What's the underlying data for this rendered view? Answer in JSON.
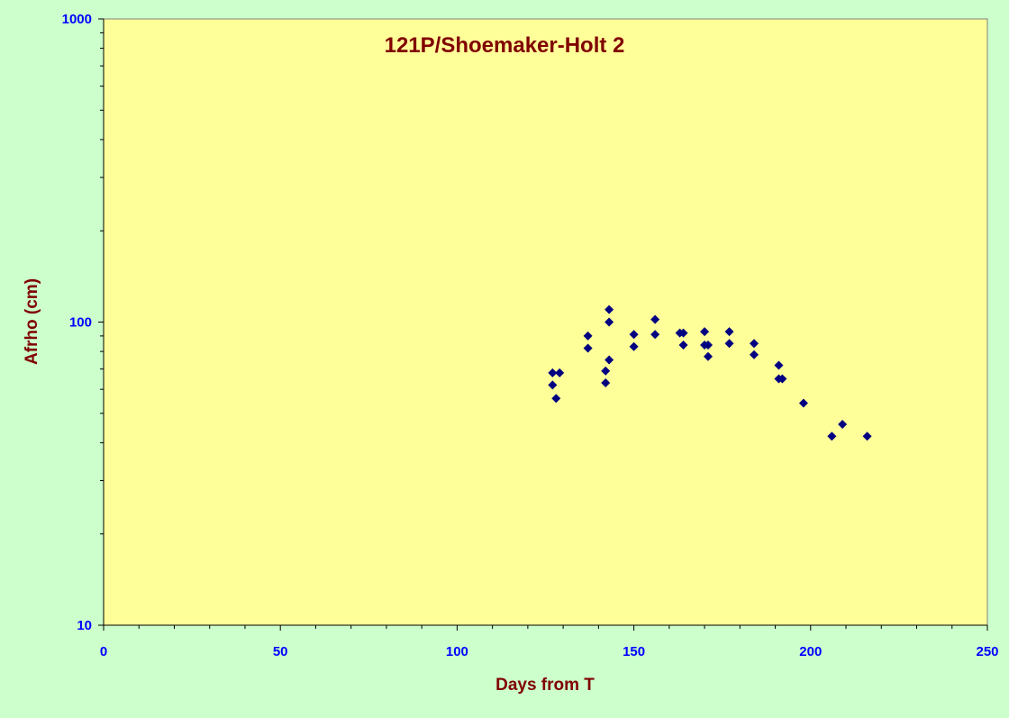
{
  "colors": {
    "background": "#ccffcc",
    "plot_area": "#ffff99",
    "title": "#800000",
    "axis_title": "#800000",
    "tick_labels": "#0000ff",
    "marker": "#000080",
    "axis_line": "#000000"
  },
  "chart_data": {
    "type": "scatter",
    "title": "121P/Shoemaker-Holt 2",
    "xlabel": "Days from T",
    "ylabel": "Afrho (cm)",
    "xlim": [
      0,
      250
    ],
    "ylim": [
      10,
      1000
    ],
    "y_scale": "log",
    "grid": false,
    "legend": "none",
    "marker": "diamond",
    "x_ticks": [
      0,
      50,
      100,
      150,
      200,
      250
    ],
    "x_tick_labels": [
      "0",
      "50",
      "100",
      "150",
      "200",
      "250"
    ],
    "y_ticks": [
      10,
      100,
      1000
    ],
    "y_tick_labels": [
      "10",
      "100",
      "1000"
    ],
    "series": [
      {
        "points": [
          [
            127,
            68
          ],
          [
            127,
            62
          ],
          [
            128,
            56
          ],
          [
            129,
            68
          ],
          [
            137,
            90
          ],
          [
            137,
            82
          ],
          [
            142,
            69
          ],
          [
            142,
            63
          ],
          [
            143,
            110
          ],
          [
            143,
            100
          ],
          [
            143,
            75
          ],
          [
            150,
            91
          ],
          [
            150,
            83
          ],
          [
            156,
            102
          ],
          [
            156,
            91
          ],
          [
            163,
            92
          ],
          [
            164,
            92
          ],
          [
            164,
            84
          ],
          [
            170,
            93
          ],
          [
            170,
            84
          ],
          [
            171,
            84
          ],
          [
            171,
            77
          ],
          [
            177,
            93
          ],
          [
            177,
            85
          ],
          [
            184,
            85
          ],
          [
            184,
            78
          ],
          [
            191,
            72
          ],
          [
            191,
            65
          ],
          [
            192,
            65
          ],
          [
            198,
            54
          ],
          [
            206,
            42
          ],
          [
            209,
            46
          ],
          [
            216,
            42
          ]
        ]
      }
    ]
  }
}
